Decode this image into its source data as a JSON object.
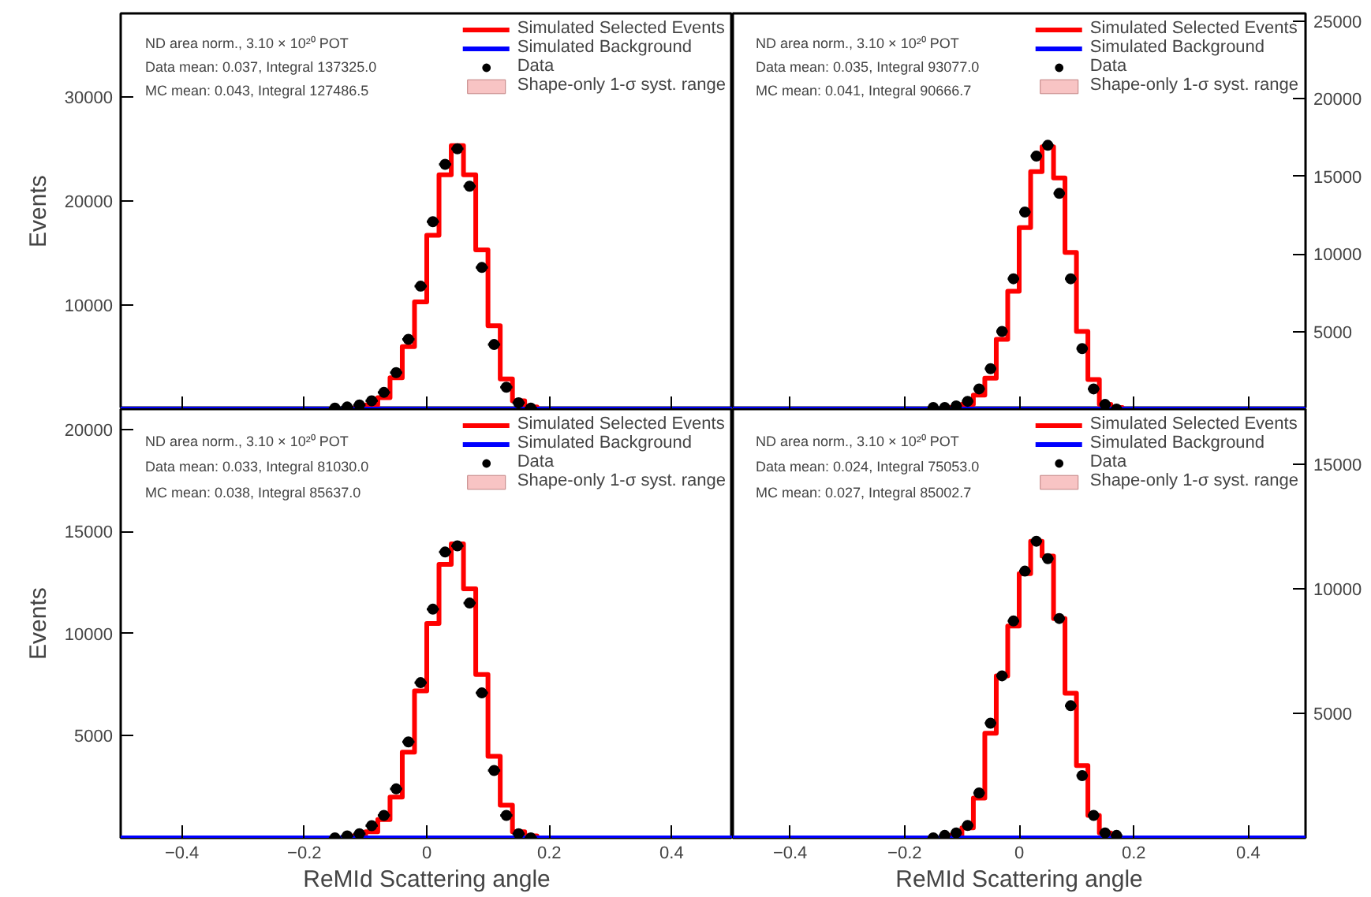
{
  "chart_data": [
    {
      "type": "histogram",
      "ylabel": "Events",
      "xlim": [
        -0.5,
        0.5
      ],
      "xticks": [
        -0.4,
        -0.2,
        0,
        0.2,
        0.4
      ],
      "ylim": [
        0,
        38000
      ],
      "yticks": [
        10000,
        20000,
        30000
      ],
      "tick_labels": "y",
      "legend": "top right",
      "grid": false,
      "annotations": [
        "ND area norm., 3.10 × 10²⁰ POT",
        "Data mean: 0.037, Integral 137325.0",
        "MC mean:   0.043, Integral 127486.5"
      ],
      "series": [
        {
          "name": "Simulated Selected Events",
          "color": "#ff0000",
          "bins": [
            -0.12,
            -0.1,
            -0.08,
            -0.06,
            -0.04,
            -0.02,
            0,
            0.02,
            0.04,
            0.06,
            0.08,
            0.1,
            0.12,
            0.14,
            0.16,
            0.18
          ],
          "values": [
            100,
            400,
            1100,
            3000,
            6000,
            10300,
            16700,
            22500,
            25300,
            22500,
            15300,
            8000,
            2900,
            800,
            200
          ]
        },
        {
          "name": "Simulated Background",
          "type": "line",
          "color": "#0000ff",
          "x": [
            -0.5,
            0.5
          ],
          "values": [
            0,
            0
          ]
        },
        {
          "name": "Data",
          "type": "scatter",
          "marker": "circle",
          "color": "#000000",
          "x": [
            -0.15,
            -0.13,
            -0.11,
            -0.09,
            -0.07,
            -0.05,
            -0.03,
            -0.01,
            0.01,
            0.03,
            0.05,
            0.07,
            0.09,
            0.11,
            0.13,
            0.15,
            0.17
          ],
          "values": [
            100,
            200,
            400,
            800,
            1600,
            3500,
            6700,
            11800,
            18000,
            23500,
            25000,
            21400,
            13600,
            6200,
            2100,
            600,
            100
          ],
          "xerrors": [
            0.01,
            0.01,
            0.01,
            0.01,
            0.01,
            0.01,
            0.01,
            0.01,
            0.01,
            0.01,
            0.01,
            0.01,
            0.01,
            0.01,
            0.01,
            0.01,
            0.01
          ]
        },
        {
          "name": "Shape-only 1-σ syst. range",
          "type": "bar",
          "color": "#f8c4c4",
          "values": [
            null,
            null,
            null,
            null,
            null,
            null,
            null,
            null,
            null,
            null,
            null,
            null,
            null,
            null,
            null
          ]
        }
      ]
    },
    {
      "type": "histogram",
      "xlim": [
        -0.5,
        0.5
      ],
      "xticks": [
        -0.4,
        -0.2,
        0,
        0.2,
        0.4
      ],
      "ylim": [
        0,
        25500
      ],
      "yticks": [
        5000,
        10000,
        15000,
        20000,
        25000
      ],
      "tick_labels": "y",
      "legend": "top right",
      "grid": false,
      "annotations": [
        "ND area norm., 3.10 × 10²⁰ POT",
        "Data mean: 0.035, Integral 93077.0",
        "MC mean:   0.041, Integral 90666.7"
      ],
      "series": [
        {
          "name": "Simulated Selected Events",
          "color": "#ff0000",
          "bins": [
            -0.12,
            -0.1,
            -0.08,
            -0.06,
            -0.04,
            -0.02,
            0,
            0.02,
            0.04,
            0.06,
            0.08,
            0.1,
            0.12,
            0.14,
            0.16,
            0.18
          ],
          "values": [
            100,
            300,
            900,
            2000,
            4500,
            7600,
            11700,
            15300,
            16900,
            14900,
            10100,
            5000,
            1900,
            300,
            100
          ]
        },
        {
          "name": "Simulated Background",
          "type": "line",
          "color": "#0000ff",
          "x": [
            -0.5,
            0.5
          ],
          "values": [
            0,
            0
          ]
        },
        {
          "name": "Data",
          "type": "scatter",
          "marker": "circle",
          "color": "#000000",
          "x": [
            -0.15,
            -0.13,
            -0.11,
            -0.09,
            -0.07,
            -0.05,
            -0.03,
            -0.01,
            0.01,
            0.03,
            0.05,
            0.07,
            0.09,
            0.11,
            0.13,
            0.15,
            0.17
          ],
          "values": [
            100,
            100,
            200,
            500,
            1300,
            2600,
            5000,
            8400,
            12700,
            16300,
            17000,
            13900,
            8400,
            3900,
            1300,
            300,
            0
          ],
          "xerrors": [
            0.01,
            0.01,
            0.01,
            0.01,
            0.01,
            0.01,
            0.01,
            0.01,
            0.01,
            0.01,
            0.01,
            0.01,
            0.01,
            0.01,
            0.01,
            0.01,
            0.01
          ]
        },
        {
          "name": "Shape-only 1-σ syst. range",
          "type": "bar",
          "color": "#f8c4c4",
          "values": [
            null,
            null,
            null,
            null,
            null,
            null,
            null,
            null,
            null,
            null,
            null,
            null,
            null,
            null,
            null
          ]
        }
      ]
    },
    {
      "type": "histogram",
      "xlabel": "ReMId Scattering angle",
      "ylabel": "Events",
      "xlim": [
        -0.5,
        0.5
      ],
      "xticks": [
        -0.4,
        -0.2,
        0,
        0.2,
        0.4
      ],
      "ylim": [
        0,
        21000
      ],
      "yticks": [
        5000,
        10000,
        15000,
        20000
      ],
      "legend": "top right",
      "grid": false,
      "annotations": [
        "ND area norm., 3.10 × 10²⁰ POT",
        "Data mean: 0.033, Integral 81030.0",
        "MC mean:   0.038, Integral 85637.0"
      ],
      "series": [
        {
          "name": "Simulated Selected Events",
          "color": "#ff0000",
          "bins": [
            -0.12,
            -0.1,
            -0.08,
            -0.06,
            -0.04,
            -0.02,
            0,
            0.02,
            0.04,
            0.06,
            0.08,
            0.1,
            0.12,
            0.14,
            0.16,
            0.18
          ],
          "values": [
            100,
            300,
            900,
            2000,
            4200,
            7200,
            10500,
            13400,
            14400,
            12200,
            8000,
            4000,
            1600,
            300,
            100
          ]
        },
        {
          "name": "Simulated Background",
          "type": "line",
          "color": "#0000ff",
          "x": [
            -0.5,
            0.5
          ],
          "values": [
            0,
            0
          ]
        },
        {
          "name": "Data",
          "type": "scatter",
          "marker": "circle",
          "color": "#000000",
          "x": [
            -0.15,
            -0.13,
            -0.11,
            -0.09,
            -0.07,
            -0.05,
            -0.03,
            -0.01,
            0.01,
            0.03,
            0.05,
            0.07,
            0.09,
            0.11,
            0.13,
            0.15,
            0.17
          ],
          "values": [
            0,
            100,
            200,
            600,
            1100,
            2400,
            4700,
            7600,
            11200,
            14000,
            14300,
            11500,
            7100,
            3300,
            1100,
            200,
            0
          ],
          "xerrors": [
            0.01,
            0.01,
            0.01,
            0.01,
            0.01,
            0.01,
            0.01,
            0.01,
            0.01,
            0.01,
            0.01,
            0.01,
            0.01,
            0.01,
            0.01,
            0.01,
            0.01
          ]
        },
        {
          "name": "Shape-only 1-σ syst. range",
          "type": "bar",
          "color": "#f8c4c4",
          "values": [
            null,
            null,
            null,
            null,
            null,
            null,
            null,
            null,
            null,
            null,
            null,
            null,
            null,
            null,
            null
          ]
        }
      ]
    },
    {
      "type": "histogram",
      "xlabel": "ReMId Scattering angle",
      "xlim": [
        -0.5,
        0.5
      ],
      "xticks": [
        -0.4,
        -0.2,
        0,
        0.2,
        0.4
      ],
      "ylim": [
        0,
        17200
      ],
      "yticks": [
        5000,
        10000,
        15000
      ],
      "legend": "top right",
      "grid": false,
      "annotations": [
        "ND area norm., 3.10 × 10²⁰ POT",
        "Data mean: 0.024, Integral 75053.0",
        "MC mean:   0.027, Integral 85002.7"
      ],
      "series": [
        {
          "name": "Simulated Selected Events",
          "color": "#ff0000",
          "bins": [
            -0.12,
            -0.1,
            -0.08,
            -0.06,
            -0.04,
            -0.02,
            0,
            0.02,
            0.04,
            0.06,
            0.08,
            0.1,
            0.12,
            0.14,
            0.16,
            0.18
          ],
          "values": [
            100,
            400,
            1600,
            4200,
            6500,
            8500,
            10600,
            11900,
            11300,
            8800,
            5800,
            2900,
            900,
            200,
            0
          ]
        },
        {
          "name": "Simulated Background",
          "type": "line",
          "color": "#0000ff",
          "x": [
            -0.5,
            0.5
          ],
          "values": [
            0,
            0
          ]
        },
        {
          "name": "Data",
          "type": "scatter",
          "marker": "circle",
          "color": "#000000",
          "x": [
            -0.15,
            -0.13,
            -0.11,
            -0.09,
            -0.07,
            -0.05,
            -0.03,
            -0.01,
            0.01,
            0.03,
            0.05,
            0.07,
            0.09,
            0.11,
            0.13,
            0.15,
            0.17
          ],
          "values": [
            0,
            100,
            200,
            500,
            1800,
            4600,
            6500,
            8700,
            10700,
            11900,
            11200,
            8800,
            5300,
            2500,
            900,
            200,
            100
          ],
          "xerrors": [
            0.01,
            0.01,
            0.01,
            0.01,
            0.01,
            0.01,
            0.01,
            0.01,
            0.01,
            0.01,
            0.01,
            0.01,
            0.01,
            0.01,
            0.01,
            0.01,
            0.01
          ]
        },
        {
          "name": "Shape-only 1-σ syst. range",
          "type": "bar",
          "color": "#f8c4c4",
          "values": [
            null,
            null,
            null,
            null,
            null,
            null,
            null,
            null,
            null,
            null,
            null,
            null,
            null,
            null,
            null
          ]
        }
      ]
    }
  ]
}
